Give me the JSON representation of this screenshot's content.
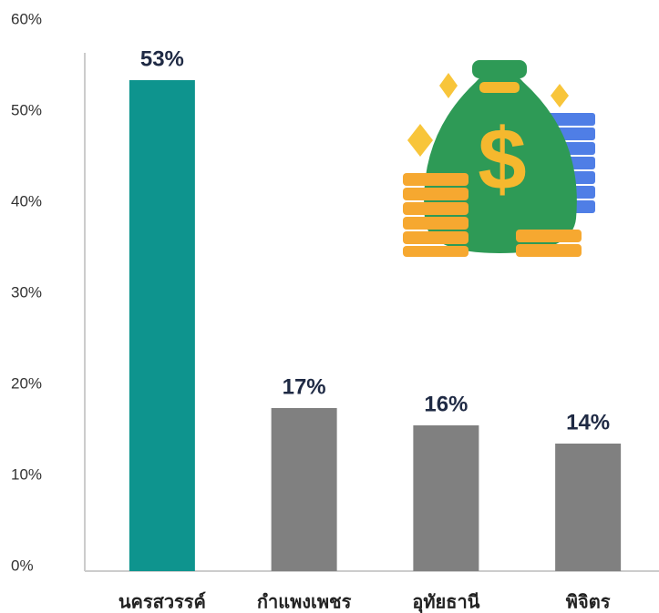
{
  "chart_data": {
    "type": "bar",
    "categories": [
      "นครสวรรค์",
      "กำแพงเพชร",
      "อุทัยธานี",
      "พิจิตร"
    ],
    "values": [
      53.4,
      17.4,
      15.5,
      13.5
    ],
    "value_labels": [
      "53%",
      "17%",
      "16%",
      "14%"
    ],
    "colors": [
      "#0e948e",
      "#808080",
      "#808080",
      "#808080"
    ],
    "ylim": [
      0,
      60
    ],
    "yticks": [
      {
        "value": 0,
        "label": "0%"
      },
      {
        "value": 10,
        "label": "10%"
      },
      {
        "value": 20,
        "label": "20%"
      },
      {
        "value": 30,
        "label": "30%"
      },
      {
        "value": 40,
        "label": "40%"
      },
      {
        "value": 50,
        "label": "50%"
      },
      {
        "value": 60,
        "label": "60%"
      }
    ],
    "grid": false
  }
}
